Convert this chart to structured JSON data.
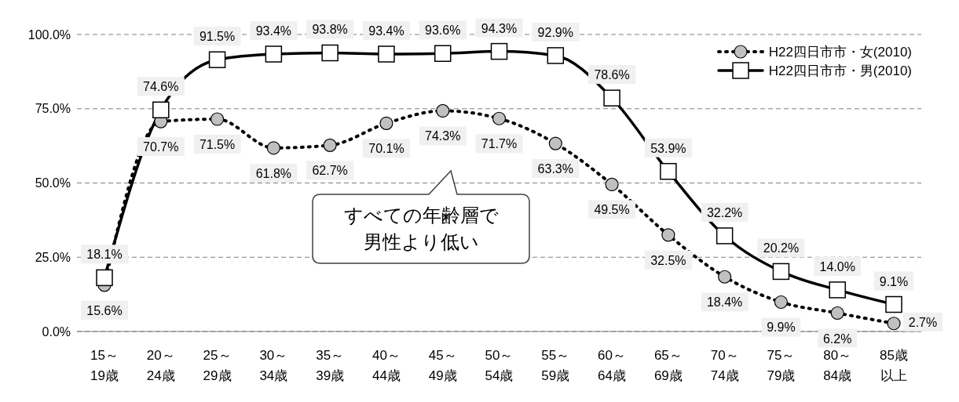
{
  "chart_data": {
    "type": "line",
    "categories": [
      "15～\n19歳",
      "20～\n24歳",
      "25～\n29歳",
      "30～\n34歳",
      "35～\n39歳",
      "40～\n44歳",
      "45～\n49歳",
      "50～\n54歳",
      "55～\n59歳",
      "60～\n64歳",
      "65～\n69歳",
      "70～\n74歳",
      "75～\n79歳",
      "80～\n84歳",
      "85歳以上"
    ],
    "series": [
      {
        "name": "H22四日市市・女(2010)",
        "color": "#000000",
        "marker": "circle",
        "line_style": "dotted",
        "values": [
          15.6,
          70.7,
          71.5,
          61.8,
          62.7,
          70.1,
          74.3,
          71.7,
          63.3,
          49.5,
          32.5,
          18.4,
          9.9,
          6.2,
          2.7
        ],
        "value_labels": [
          "15.6%",
          "70.7%",
          "71.5%",
          "61.8%",
          "62.7%",
          "70.1%",
          "74.3%",
          "71.7%",
          "63.3%",
          "49.5%",
          "32.5%",
          "18.4%",
          "9.9%",
          "6.2%",
          "2.7%"
        ]
      },
      {
        "name": "H22四日市市・男(2010)",
        "color": "#000000",
        "marker": "square",
        "line_style": "solid",
        "values": [
          18.1,
          74.6,
          91.5,
          93.4,
          93.8,
          93.4,
          93.6,
          94.3,
          92.9,
          78.6,
          53.9,
          32.2,
          20.2,
          14.0,
          9.1
        ],
        "value_labels": [
          "18.1%",
          "74.6%",
          "91.5%",
          "93.4%",
          "93.8%",
          "93.4%",
          "93.6%",
          "94.3%",
          "92.9%",
          "78.6%",
          "53.9%",
          "32.2%",
          "20.2%",
          "14.0%",
          "9.1%"
        ]
      }
    ],
    "ylim": [
      0,
      100
    ],
    "yticks": [
      {
        "value": 0,
        "label": "0.0%"
      },
      {
        "value": 25,
        "label": "25.0%"
      },
      {
        "value": 50,
        "label": "50.0%"
      },
      {
        "value": 75,
        "label": "75.0%"
      },
      {
        "value": 100,
        "label": "100.0%"
      }
    ],
    "grid": "y",
    "legend": "top right",
    "annotations": [
      "すべての年齢層で男性より低い"
    ]
  }
}
